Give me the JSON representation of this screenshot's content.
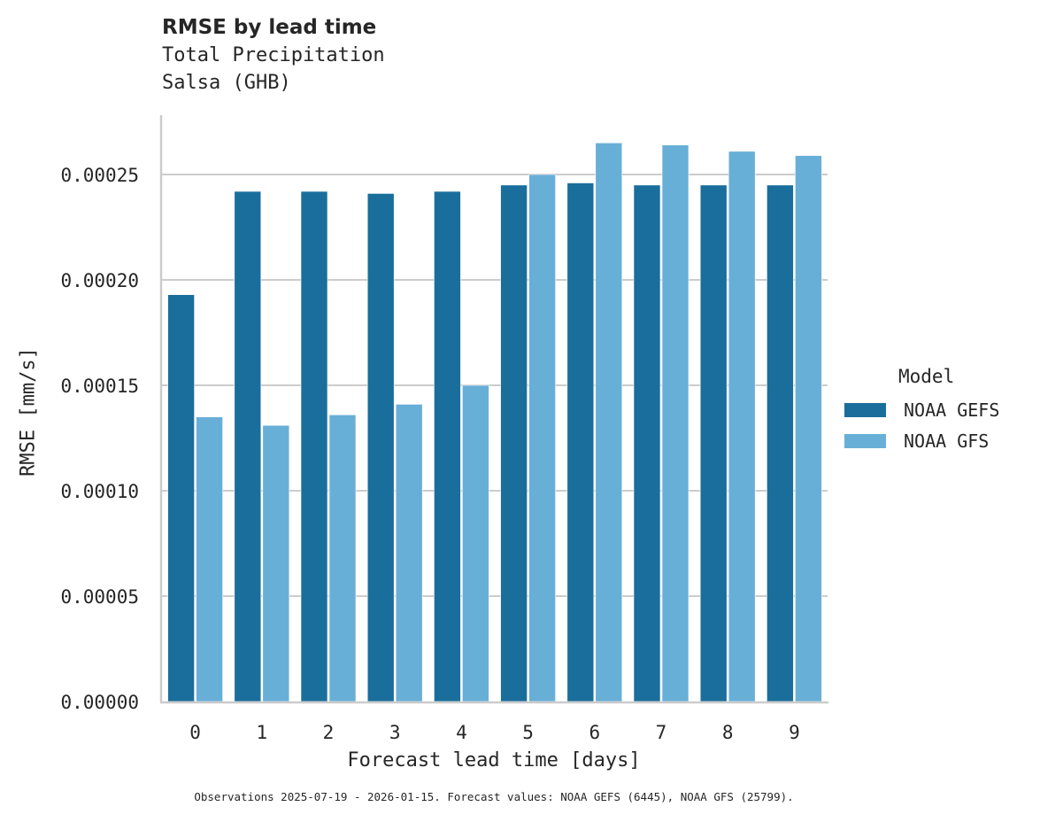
{
  "header": {
    "title": "RMSE by lead time",
    "subtitle_line1": "Total Precipitation",
    "subtitle_line2": "Salsa (GHB)"
  },
  "axes": {
    "xlabel": "Forecast lead time [days]",
    "ylabel": "RMSE [mm/s]",
    "yticks": [
      "0.00000",
      "0.00005",
      "0.00010",
      "0.00015",
      "0.00020",
      "0.00025"
    ],
    "xticks": [
      "0",
      "1",
      "2",
      "3",
      "4",
      "5",
      "6",
      "7",
      "8",
      "9"
    ]
  },
  "legend": {
    "title": "Model",
    "items": [
      {
        "label": "NOAA GEFS",
        "color": "#1a6e9c"
      },
      {
        "label": "NOAA GFS",
        "color": "#68afd7"
      }
    ]
  },
  "footnote": "Observations 2025-07-19 - 2026-01-15. Forecast values: NOAA GEFS (6445), NOAA GFS (25799).",
  "chart_data": {
    "type": "bar",
    "title": "RMSE by lead time",
    "subtitle": "Total Precipitation / Salsa (GHB)",
    "xlabel": "Forecast lead time [days]",
    "ylabel": "RMSE [mm/s]",
    "categories": [
      "0",
      "1",
      "2",
      "3",
      "4",
      "5",
      "6",
      "7",
      "8",
      "9"
    ],
    "series": [
      {
        "name": "NOAA GEFS",
        "color": "#1a6e9c",
        "values": [
          0.000193,
          0.000242,
          0.000242,
          0.000241,
          0.000242,
          0.000245,
          0.000246,
          0.000245,
          0.000245,
          0.000245
        ]
      },
      {
        "name": "NOAA GFS",
        "color": "#68afd7",
        "values": [
          0.000135,
          0.000131,
          0.000136,
          0.000141,
          0.00015,
          0.00025,
          0.000265,
          0.000264,
          0.000261,
          0.000259
        ]
      }
    ],
    "ylim": [
      0,
      0.00028
    ],
    "yticks": [
      0,
      5e-05,
      0.0001,
      0.00015,
      0.0002,
      0.00025
    ],
    "grid": "horizontal",
    "legend_position": "right",
    "legend_title": "Model"
  }
}
